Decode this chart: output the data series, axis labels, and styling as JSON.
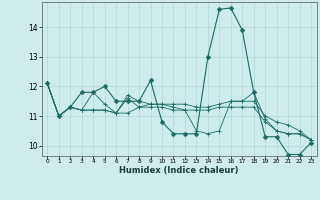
{
  "xlabel": "Humidex (Indice chaleur)",
  "background_color": "#ceecea",
  "grid_color": "#afd8d4",
  "line_color": "#1a6b63",
  "xlim": [
    -0.5,
    23.5
  ],
  "ylim": [
    9.65,
    14.85
  ],
  "yticks": [
    10,
    11,
    12,
    13,
    14
  ],
  "xticks": [
    0,
    1,
    2,
    3,
    4,
    5,
    6,
    7,
    8,
    9,
    10,
    11,
    12,
    13,
    14,
    15,
    16,
    17,
    18,
    19,
    20,
    21,
    22,
    23
  ],
  "series": [
    [
      12.1,
      11.0,
      11.3,
      11.8,
      11.8,
      12.0,
      11.5,
      11.5,
      11.5,
      12.2,
      10.8,
      10.4,
      10.4,
      10.4,
      13.0,
      14.6,
      14.65,
      13.9,
      11.8,
      10.3,
      10.3,
      9.7,
      9.7,
      10.1
    ],
    [
      12.1,
      11.0,
      11.3,
      11.2,
      11.8,
      11.4,
      11.1,
      11.6,
      11.3,
      11.4,
      11.4,
      11.4,
      11.4,
      11.3,
      11.3,
      11.4,
      11.5,
      11.5,
      11.5,
      11.0,
      10.8,
      10.7,
      10.5,
      10.2
    ],
    [
      12.1,
      11.0,
      11.3,
      11.2,
      11.2,
      11.2,
      11.1,
      11.1,
      11.3,
      11.3,
      11.3,
      11.2,
      11.2,
      11.2,
      11.2,
      11.3,
      11.3,
      11.3,
      11.3,
      10.8,
      10.5,
      10.4,
      10.4,
      10.2
    ],
    [
      12.1,
      11.0,
      11.3,
      11.2,
      11.2,
      11.2,
      11.1,
      11.7,
      11.5,
      11.4,
      11.4,
      11.3,
      11.2,
      10.5,
      10.4,
      10.5,
      11.5,
      11.5,
      11.8,
      10.9,
      10.5,
      10.4,
      10.4,
      10.2
    ]
  ],
  "marker_series": 0,
  "marker": "D",
  "markersize": 2.5
}
